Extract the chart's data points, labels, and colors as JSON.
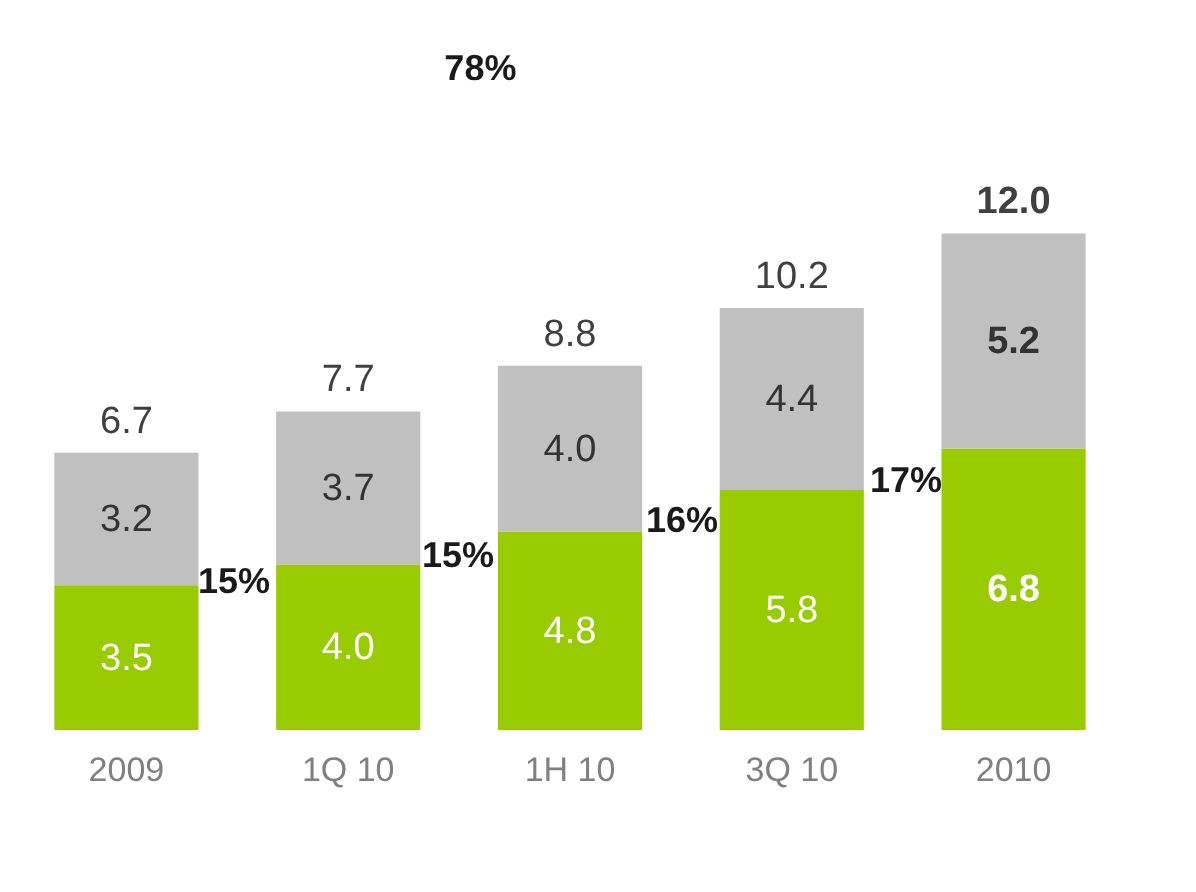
{
  "chart_data": {
    "type": "bar",
    "stacked": true,
    "tick_labels": "x",
    "categories": [
      "2009",
      "1Q 10",
      "1H 10",
      "3Q 10",
      "2010"
    ],
    "series": [
      {
        "color": "#99cc00",
        "values": [
          3.5,
          4.0,
          4.8,
          5.8,
          6.8
        ],
        "value_labels": [
          "3.5",
          "4.0",
          "4.8",
          "5.8",
          "6.8"
        ]
      },
      {
        "color": "#c0c0c0",
        "values": [
          3.2,
          3.7,
          4.0,
          4.4,
          5.2
        ],
        "value_labels": [
          "3.2",
          "3.7",
          "4.0",
          "4.4",
          "5.2"
        ]
      }
    ],
    "totals": [
      "6.7",
      "7.7",
      "8.8",
      "10.2",
      "12.0"
    ],
    "annotations": [
      "78%",
      "15%",
      "15%",
      "16%",
      "17%"
    ]
  }
}
